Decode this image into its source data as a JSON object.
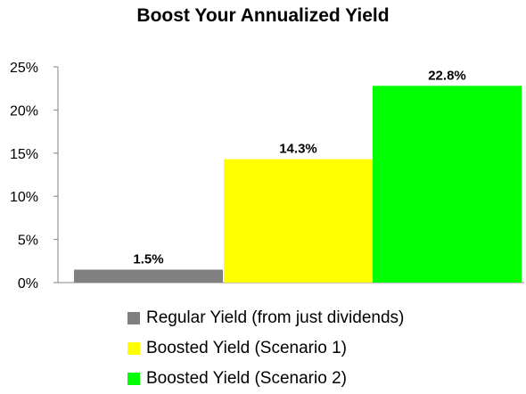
{
  "chart_data": {
    "type": "bar",
    "title": "Boost Your Annualized Yield",
    "categories": [
      "Regular Yield (from just dividends)",
      "Boosted Yield (Scenario 1)",
      "Boosted Yield (Scenario 2)"
    ],
    "values": [
      1.5,
      14.3,
      22.8
    ],
    "data_labels": [
      "1.5%",
      "14.3%",
      "22.8%"
    ],
    "colors": [
      "#808080",
      "#ffff00",
      "#00ff00"
    ],
    "ylim": [
      0,
      25
    ],
    "yticks": [
      0,
      5,
      10,
      15,
      20,
      25
    ],
    "ytick_labels": [
      "0%",
      "5%",
      "10%",
      "15%",
      "20%",
      "25%"
    ],
    "xlabel": "",
    "ylabel": "",
    "grid": false,
    "legend_position": "bottom"
  }
}
